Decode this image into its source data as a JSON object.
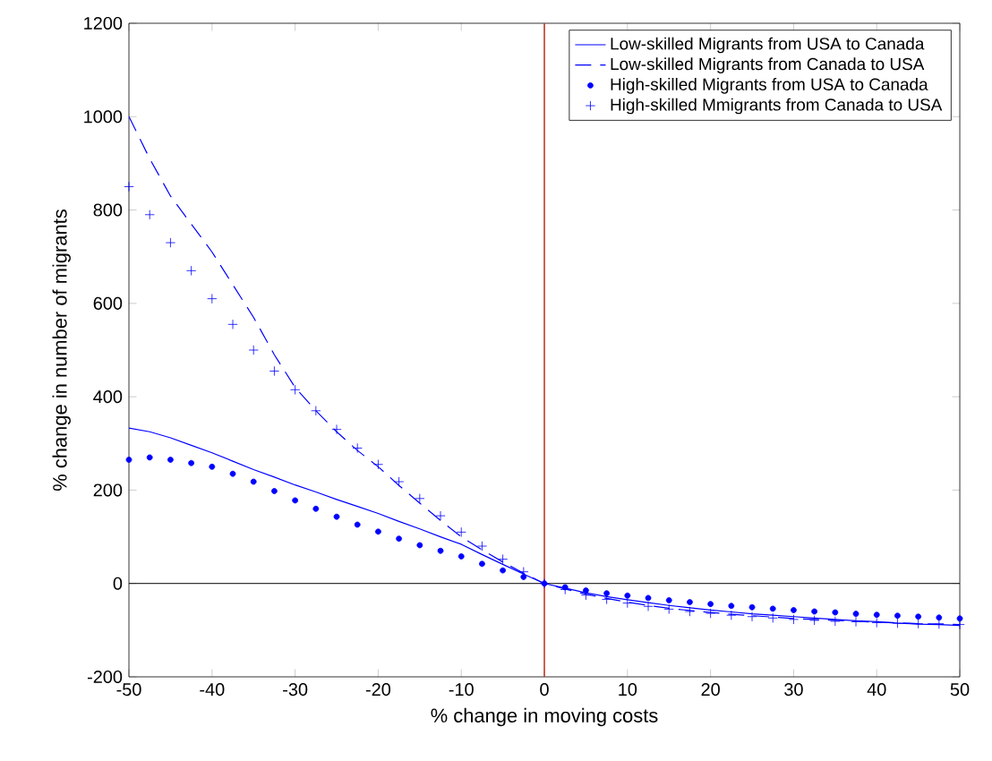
{
  "chart_data": {
    "type": "line",
    "xlabel": "% change in moving costs",
    "ylabel": "% change in number of migrants",
    "x": [
      -50,
      -47.5,
      -45,
      -42.5,
      -40,
      -37.5,
      -35,
      -32.5,
      -30,
      -27.5,
      -25,
      -22.5,
      -20,
      -17.5,
      -15,
      -12.5,
      -10,
      -7.5,
      -5,
      -2.5,
      0,
      2.5,
      5,
      7.5,
      10,
      12.5,
      15,
      17.5,
      20,
      22.5,
      25,
      27.5,
      30,
      32.5,
      35,
      37.5,
      40,
      42.5,
      45,
      47.5,
      50
    ],
    "series": [
      {
        "name": "Low-skilled Migrants from USA to Canada",
        "color": "#0000ff",
        "line_style": "solid",
        "values": [
          333,
          325,
          312,
          296,
          280,
          262,
          244,
          228,
          211,
          196,
          180,
          165,
          150,
          133,
          117,
          100,
          84,
          62,
          41,
          20,
          0,
          -10,
          -20,
          -28,
          -35,
          -41,
          -47,
          -52,
          -57,
          -61,
          -65,
          -68,
          -71,
          -74,
          -77,
          -80,
          -82,
          -85,
          -87,
          -88,
          -90
        ]
      },
      {
        "name": "Low-skilled Migrants from Canada to USA",
        "color": "#0000ff",
        "line_style": "dashed",
        "values": [
          1000,
          910,
          830,
          770,
          710,
          640,
          570,
          490,
          420,
          370,
          325,
          285,
          250,
          210,
          172,
          135,
          100,
          72,
          46,
          22,
          0,
          -12,
          -23,
          -32,
          -40,
          -47,
          -53,
          -58,
          -62,
          -66,
          -69,
          -72,
          -75,
          -77,
          -79,
          -81,
          -83,
          -84,
          -86,
          -87,
          -88
        ]
      },
      {
        "name": "High-skilled Migrants from USA to Canada",
        "color": "#0000ff",
        "type": "scatter",
        "marker": "circle",
        "values": [
          265,
          270,
          265,
          258,
          250,
          235,
          218,
          198,
          178,
          160,
          143,
          126,
          111,
          96,
          82,
          70,
          58,
          42,
          28,
          14,
          0,
          -8,
          -15,
          -21,
          -26,
          -31,
          -36,
          -40,
          -44,
          -48,
          -51,
          -54,
          -57,
          -60,
          -62,
          -65,
          -67,
          -69,
          -71,
          -73,
          -75
        ]
      },
      {
        "name": "High-skilled Mmigrants from Canada to USA",
        "color": "#0000ff",
        "type": "scatter",
        "marker": "cross",
        "values": [
          850,
          790,
          730,
          670,
          610,
          555,
          500,
          455,
          415,
          370,
          330,
          290,
          255,
          218,
          182,
          145,
          110,
          80,
          52,
          25,
          0,
          -13,
          -25,
          -34,
          -42,
          -49,
          -55,
          -60,
          -64,
          -68,
          -71,
          -74,
          -77,
          -79,
          -81,
          -82,
          -84,
          -85,
          -86,
          -87,
          -88
        ]
      }
    ],
    "xlim": [
      -50,
      50
    ],
    "ylim": [
      -200,
      1200
    ],
    "xticks": [
      -50,
      -40,
      -30,
      -20,
      -10,
      0,
      10,
      20,
      30,
      40,
      50
    ],
    "yticks": [
      -200,
      0,
      200,
      400,
      600,
      800,
      1000,
      1200
    ],
    "ref_lines": [
      {
        "axis": "y",
        "value": 0,
        "color": "#000000"
      },
      {
        "axis": "x",
        "value": 0,
        "color": "#c0392b"
      }
    ],
    "legend": "top right",
    "grid": false
  }
}
